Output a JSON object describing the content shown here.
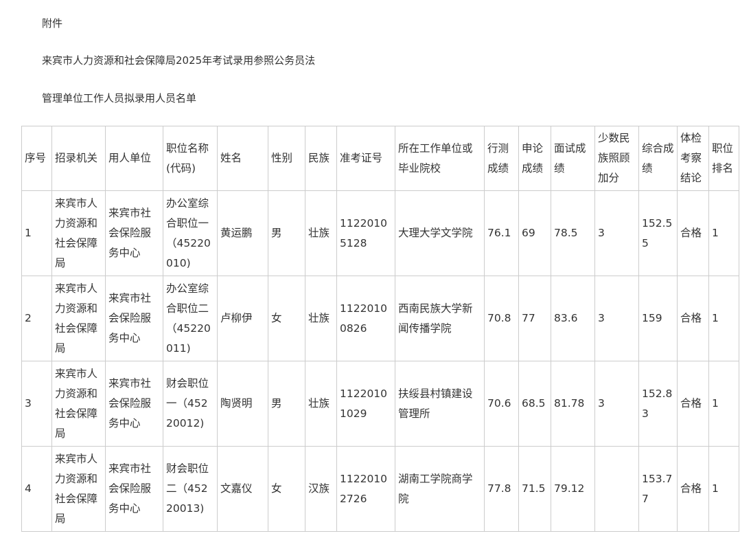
{
  "document": {
    "label": "附件",
    "title_line1": "来宾市人力资源和社会保障局2025年考试录用参照公务员法",
    "title_line2": "管理单位工作人员拟录用人员名单"
  },
  "table": {
    "headers": [
      "序号",
      "招录机关",
      "用人单位",
      "职位名称(代码)",
      "姓名",
      "性别",
      "民族",
      "准考证号",
      "所在工作单位或毕业院校",
      "行测成绩",
      "申论成绩",
      "面试成绩",
      "少数民族照顾加分",
      "综合成绩",
      "体检考察结论",
      "职位排名"
    ],
    "rows": [
      [
        "1",
        "来宾市人力资源和社会保障局",
        "来宾市社会保险服务中心",
        "办公室综合职位一（45220010)",
        "黄运鹏",
        "男",
        "壮族",
        "11220105128",
        "大理大学文学院",
        "76.1",
        "69",
        "78.5",
        "3",
        "152.55",
        "合格",
        "1"
      ],
      [
        "2",
        "来宾市人力资源和社会保障局",
        "来宾市社会保险服务中心",
        "办公室综合职位二（45220011)",
        "卢柳伊",
        "女",
        "壮族",
        "11220100826",
        "西南民族大学新闻传播学院",
        "70.8",
        "77",
        "83.6",
        "3",
        "159",
        "合格",
        "1"
      ],
      [
        "3",
        "来宾市人力资源和社会保障局",
        "来宾市社会保险服务中心",
        "财会职位一（45220012)",
        "陶贤明",
        "男",
        "壮族",
        "11220101029",
        "扶绥县村镇建设管理所",
        "70.6",
        "68.5",
        "81.78",
        "3",
        "152.83",
        "合格",
        "1"
      ],
      [
        "4",
        "来宾市人力资源和社会保障局",
        "来宾市社会保险服务中心",
        "财会职位二（45220013)",
        "文嘉仪",
        "女",
        "汉族",
        "11220102726",
        "湖南工学院商学院",
        "77.8",
        "71.5",
        "79.12",
        "",
        "153.77",
        "合格",
        "1"
      ]
    ]
  }
}
